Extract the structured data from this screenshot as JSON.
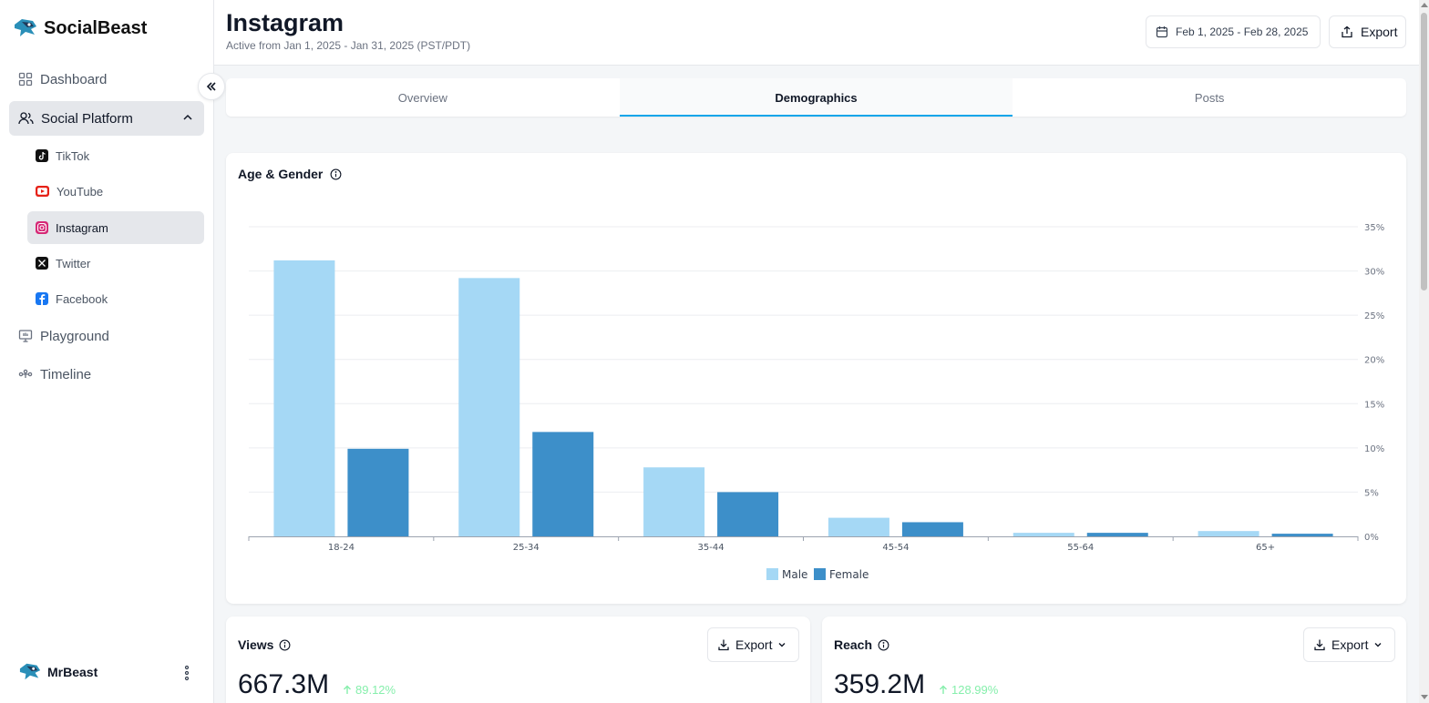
{
  "brand": {
    "name": "SocialBeast"
  },
  "sidebar": {
    "dashboard": "Dashboard",
    "social_platform": "Social Platform",
    "platforms": [
      "TikTok",
      "YouTube",
      "Instagram",
      "Twitter",
      "Facebook"
    ],
    "playground": "Playground",
    "timeline": "Timeline",
    "user": "MrBeast"
  },
  "header": {
    "title": "Instagram",
    "subtitle": "Active from Jan 1, 2025 - Jan 31, 2025 (PST/PDT)",
    "date_range": "Feb 1, 2025 - Feb 28, 2025",
    "export_label": "Export"
  },
  "tabs": [
    "Overview",
    "Demographics",
    "Posts"
  ],
  "active_tab": "Demographics",
  "chart_data": {
    "type": "bar",
    "title": "Age & Gender",
    "categories": [
      "18-24",
      "25-34",
      "35-44",
      "45-54",
      "55-64",
      "65+"
    ],
    "series": [
      {
        "name": "Male",
        "values": [
          31.2,
          29.2,
          7.8,
          2.1,
          0.4,
          0.6
        ],
        "color": "#a5d8f5"
      },
      {
        "name": "Female",
        "values": [
          9.9,
          11.8,
          5.0,
          1.6,
          0.4,
          0.3
        ],
        "color": "#3d8fc9"
      }
    ],
    "y_ticks": [
      "0%",
      "5%",
      "10%",
      "15%",
      "20%",
      "25%",
      "30%",
      "35%"
    ],
    "ylim": [
      0,
      35
    ],
    "legend": "bottom-center"
  },
  "metrics": [
    {
      "title": "Views",
      "value": "667.3M",
      "change": "89.12%",
      "export_label": "Export"
    },
    {
      "title": "Reach",
      "value": "359.2M",
      "change": "128.99%",
      "export_label": "Export"
    }
  ],
  "colors": {
    "accent": "#0ea5e9",
    "positive": "#86efac"
  }
}
